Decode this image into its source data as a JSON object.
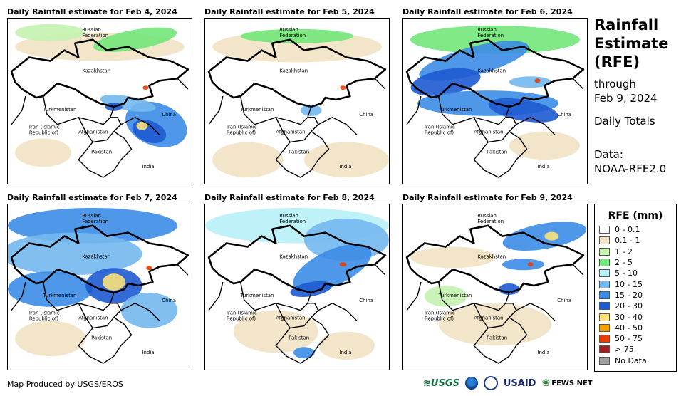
{
  "panels": [
    {
      "title": "Daily Rainfall estimate for Feb 4, 2024"
    },
    {
      "title": "Daily Rainfall estimate for Feb 5, 2024"
    },
    {
      "title": "Daily Rainfall estimate for Feb 6, 2024"
    },
    {
      "title": "Daily Rainfall estimate for Feb 7, 2024"
    },
    {
      "title": "Daily Rainfall estimate for Feb 8, 2024"
    },
    {
      "title": "Daily Rainfall estimate for Feb 9, 2024"
    }
  ],
  "map_labels": {
    "russia_1": "Russian",
    "russia_2": "Federation",
    "kazakhstan": "Kazakhstan",
    "turkmenistan": "Turkmenistan",
    "china": "China",
    "iran_1": "Iran  (Islamic",
    "iran_2": "Republic of)",
    "afghanistan": "Afghanistan",
    "pakistan": "Pakistan",
    "india": "India"
  },
  "sidebar": {
    "title_1": "Rainfall",
    "title_2": "Estimate",
    "title_3": "(RFE)",
    "through": "through",
    "date": "Feb 9, 2024",
    "totals": "Daily Totals",
    "data_label": "Data:",
    "data_source": "NOAA-RFE2.0"
  },
  "legend": {
    "title": "RFE (mm)",
    "items": [
      {
        "label": "0 - 0.1",
        "color": "#ffffff"
      },
      {
        "label": "0.1 - 1",
        "color": "#f2e2c4"
      },
      {
        "label": "1 - 2",
        "color": "#c4f2b0"
      },
      {
        "label": "2 - 5",
        "color": "#72e67a"
      },
      {
        "label": "5 - 10",
        "color": "#b8f0f8"
      },
      {
        "label": "10 - 15",
        "color": "#74b8f0"
      },
      {
        "label": "15 - 20",
        "color": "#3c8ce6"
      },
      {
        "label": "20 - 30",
        "color": "#1e5ad2"
      },
      {
        "label": "30 - 40",
        "color": "#fae17a"
      },
      {
        "label": "40 - 50",
        "color": "#f5a000"
      },
      {
        "label": "50 - 75",
        "color": "#eb3c00"
      },
      {
        "label": "> 75",
        "color": "#a01e1e"
      },
      {
        "label": "No Data",
        "color": "#a0a0a0"
      }
    ]
  },
  "credit": "Map Produced by USGS/EROS",
  "logos": {
    "usgs": "USGS",
    "usaid": "USAID",
    "fewsnet": "FEWS NET"
  }
}
